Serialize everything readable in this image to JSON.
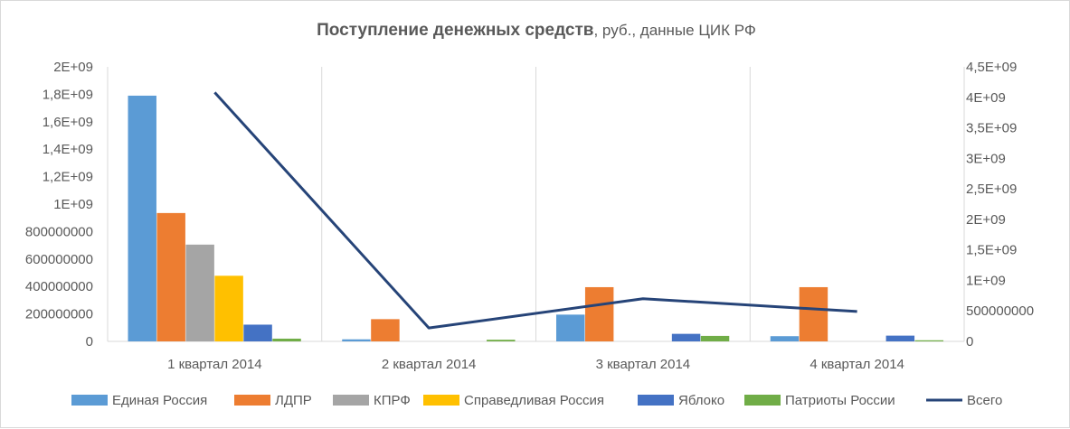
{
  "chart_data": {
    "type": "bar",
    "title": "Поступление денежных средств",
    "subtitle": ", руб., данные ЦИК РФ",
    "categories": [
      "1 квартал 2014",
      "2 квартал 2014",
      "3 квартал 2014",
      "4 квартал 2014"
    ],
    "series": [
      {
        "name": "Единая Россия",
        "type": "bar",
        "axis": "left",
        "color": "#5b9bd5",
        "values": [
          1790000000,
          15000000,
          195000000,
          38000000
        ]
      },
      {
        "name": "ЛДПР",
        "type": "bar",
        "axis": "left",
        "color": "#ed7d31",
        "values": [
          935000000,
          162000000,
          395000000,
          395000000
        ]
      },
      {
        "name": "КПРФ",
        "type": "bar",
        "axis": "left",
        "color": "#a5a5a5",
        "values": [
          705000000,
          0,
          0,
          0
        ]
      },
      {
        "name": "Справедливая Россия",
        "type": "bar",
        "axis": "left",
        "color": "#ffc000",
        "values": [
          478000000,
          0,
          0,
          0
        ]
      },
      {
        "name": "Яблоко",
        "type": "bar",
        "axis": "left",
        "color": "#4472c4",
        "values": [
          122000000,
          0,
          55000000,
          42000000
        ]
      },
      {
        "name": "Патриоты России",
        "type": "bar",
        "axis": "left",
        "color": "#70ad47",
        "values": [
          20000000,
          12000000,
          40000000,
          8000000
        ]
      },
      {
        "name": "Всего",
        "type": "line",
        "axis": "right",
        "color": "#264478",
        "values": [
          4080000000,
          220000000,
          700000000,
          490000000
        ]
      }
    ],
    "y_left": {
      "ylim": [
        0,
        2000000000
      ],
      "ticks": [
        {
          "value": 0,
          "label": "0"
        },
        {
          "value": 200000000,
          "label": "200000000"
        },
        {
          "value": 400000000,
          "label": "400000000"
        },
        {
          "value": 600000000,
          "label": "600000000"
        },
        {
          "value": 800000000,
          "label": "800000000"
        },
        {
          "value": 1000000000,
          "label": "1E+09"
        },
        {
          "value": 1200000000,
          "label": "1,2E+09"
        },
        {
          "value": 1400000000,
          "label": "1,4E+09"
        },
        {
          "value": 1600000000,
          "label": "1,6E+09"
        },
        {
          "value": 1800000000,
          "label": "1,8E+09"
        },
        {
          "value": 2000000000,
          "label": "2E+09"
        }
      ]
    },
    "y_right": {
      "ylim": [
        0,
        4500000000
      ],
      "ticks": [
        {
          "value": 0,
          "label": "0"
        },
        {
          "value": 500000000,
          "label": "500000000"
        },
        {
          "value": 1000000000,
          "label": "1E+09"
        },
        {
          "value": 1500000000,
          "label": "1,5E+09"
        },
        {
          "value": 2000000000,
          "label": "2E+09"
        },
        {
          "value": 2500000000,
          "label": "2,5E+09"
        },
        {
          "value": 3000000000,
          "label": "3E+09"
        },
        {
          "value": 3500000000,
          "label": "3,5E+09"
        },
        {
          "value": 4000000000,
          "label": "4E+09"
        },
        {
          "value": 4500000000,
          "label": "4,5E+09"
        }
      ]
    },
    "grid": "vertical-category-separators",
    "legend": "bottom"
  }
}
